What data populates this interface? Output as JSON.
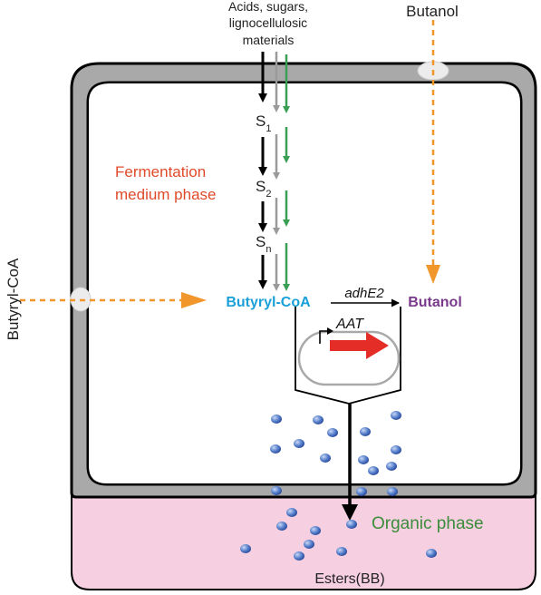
{
  "labels": {
    "inputs_line1": "Acids, sugars,",
    "inputs_line2": "lignocellulosic",
    "inputs_line3": "materials",
    "butanol_top": "Butanol",
    "butyryl_coa_left": "Butyryl-CoA",
    "fermentation_line1": "Fermentation",
    "fermentation_line2": "medium phase",
    "s_letter": "S",
    "s1_sub": "1",
    "s2_sub": "2",
    "sn_sub": "n",
    "butyryl_coa_center": "Butyryl-CoA",
    "gene_adhE2": "adhE2",
    "butanol_center": "Butanol",
    "gene_aat": "AAT",
    "organic_phase": "Organic phase",
    "esters": "Esters(BB)"
  },
  "colors": {
    "organic_fill": "#f6cfe0",
    "wall_gray": "#a9a9a9",
    "orange_accent": "#f0962a",
    "green_path": "#3a9e55",
    "gray_path": "#9a9a9a",
    "fermentation_text": "#e04a2a",
    "butyryl_text": "#1aa0d8",
    "butanol_text": "#7a3a8c",
    "organic_text": "#3b8d3b",
    "aat_arrow": "#e52d27",
    "droplet": "#3f64b4"
  }
}
